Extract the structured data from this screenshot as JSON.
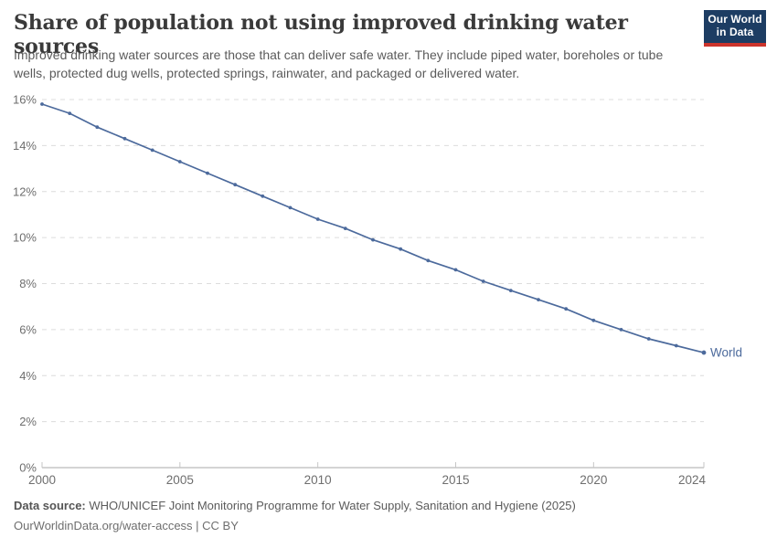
{
  "header": {
    "title": "Share of population not using improved drinking water sources",
    "subtitle": "Improved drinking water sources are those that can deliver safe water. They include piped water, boreholes or tube wells, protected dug wells, protected springs, rainwater, and packaged or delivered water.",
    "logo_line1": "Our World",
    "logo_line2": "in Data",
    "logo_bg_color": "#1d3d63",
    "logo_accent_color": "#cc342c"
  },
  "chart_data": {
    "type": "line",
    "title": "Share of population not using improved drinking water sources",
    "xlabel": "",
    "ylabel": "",
    "xlim": [
      2000,
      2024
    ],
    "ylim": [
      0,
      16
    ],
    "x_ticks": [
      2000,
      2005,
      2010,
      2015,
      2020,
      2024
    ],
    "y_ticks": [
      0,
      2,
      4,
      6,
      8,
      10,
      12,
      14,
      16
    ],
    "y_tick_suffix": "%",
    "grid": "horizontal-dashed",
    "legend_position": "end-of-line-label",
    "x": [
      2000,
      2001,
      2002,
      2003,
      2004,
      2005,
      2006,
      2007,
      2008,
      2009,
      2010,
      2011,
      2012,
      2013,
      2014,
      2015,
      2016,
      2017,
      2018,
      2019,
      2020,
      2021,
      2022,
      2023,
      2024
    ],
    "series": [
      {
        "name": "World",
        "color": "#4c6a9c",
        "values": [
          15.8,
          15.4,
          14.8,
          14.3,
          13.8,
          13.3,
          12.8,
          12.3,
          11.8,
          11.3,
          10.8,
          10.4,
          9.9,
          9.5,
          9.0,
          8.6,
          8.1,
          7.7,
          7.3,
          6.9,
          6.4,
          6.0,
          5.6,
          5.3,
          5.0
        ]
      }
    ],
    "colors": {
      "gridline": "#dcdcdc",
      "axis_line": "#a9a9a9",
      "tick_mark": "#c6c6c6",
      "tick_label": "#6e6e6e"
    }
  },
  "footer": {
    "source_label": "Data source:",
    "source_text": "WHO/UNICEF Joint Monitoring Programme for Water Supply, Sanitation and Hygiene (2025)",
    "citation": "OurWorldinData.org/water-access | CC BY"
  }
}
